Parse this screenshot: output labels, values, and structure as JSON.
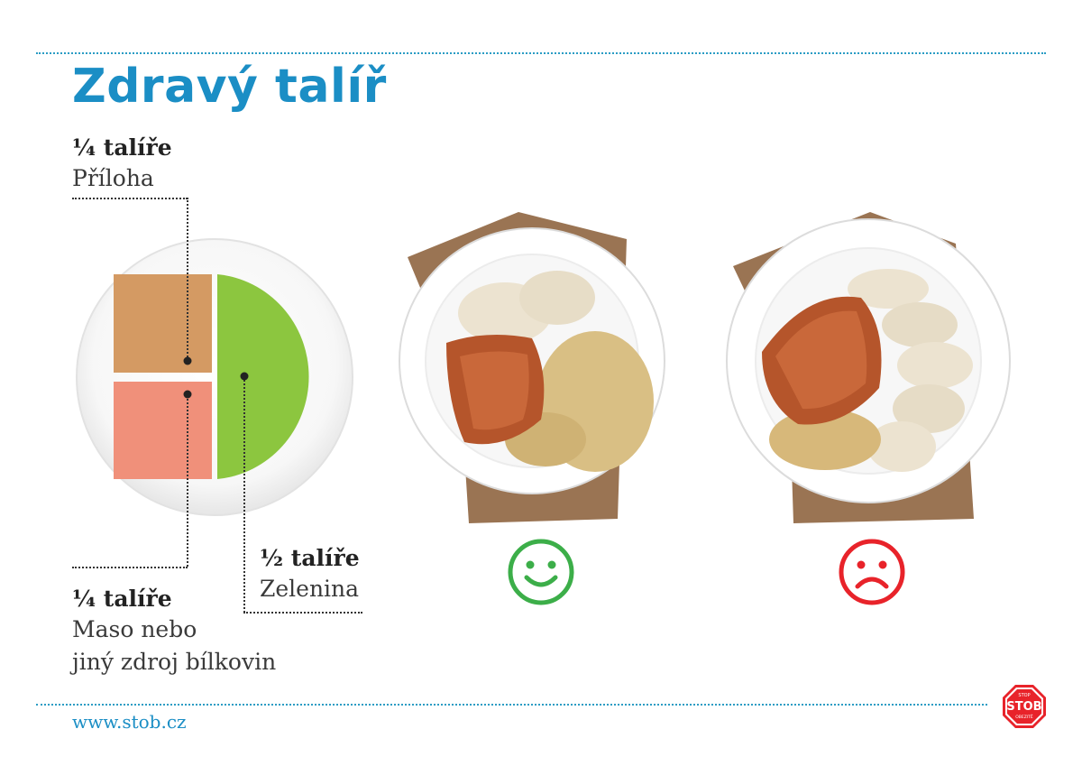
{
  "title": "Zdravý talíř",
  "labels": {
    "priloha": {
      "fraction": "¼ talíře",
      "name": "Příloha"
    },
    "zelenina": {
      "fraction": "½ talíře",
      "name": "Zelenina"
    },
    "maso": {
      "fraction": "¼ talíře",
      "name_line1": "Maso nebo",
      "name_line2": "jiný zdroj bílkovin"
    }
  },
  "plate_colors": {
    "priloha": "#d49a63",
    "maso": "#f0907a",
    "zelenina": "#8cc63f"
  },
  "good_plate": {
    "icon": "happy-face-icon",
    "color": "#3cae49"
  },
  "bad_plate": {
    "icon": "sad-face-icon",
    "color": "#e8232a"
  },
  "website": "www.stob.cz",
  "logo": {
    "small_top": "STOP",
    "main": "STOB",
    "small_bottom": "OBEZITĚ",
    "color": "#e8232a"
  }
}
